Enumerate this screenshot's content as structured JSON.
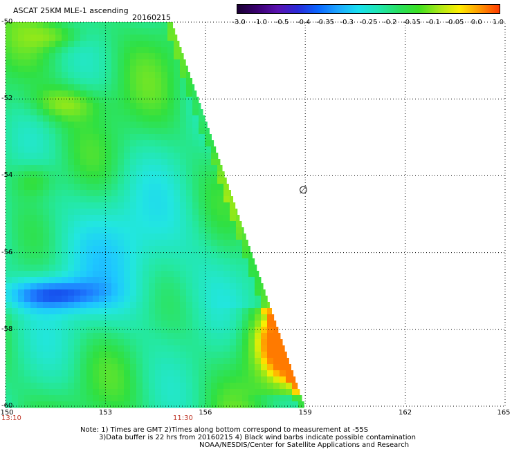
{
  "header": {
    "title": "ASCAT 25KM MLE-1 ascending",
    "date": "20160215"
  },
  "colorbar": {
    "labels": [
      "-3.0",
      "-1.0",
      "-0.5",
      "-0.4",
      "-0.35",
      "-0.3",
      "-0.25",
      "-0.2",
      "-0.15",
      "-0.1",
      "-0.05",
      "0.0",
      "1.0"
    ],
    "colors": [
      "#1a0033",
      "#3a0070",
      "#5a12b0",
      "#2a2ad8",
      "#0a66ff",
      "#1ea7ff",
      "#19e0f0",
      "#20e6b0",
      "#28e060",
      "#3de020",
      "#a8e818",
      "#ffee00",
      "#ff9900",
      "#ff3a00"
    ]
  },
  "map": {
    "lat_labels": [
      "-50",
      "-52",
      "-54",
      "-56",
      "-58",
      "-60"
    ],
    "lon_labels": [
      "150",
      "153",
      "156",
      "159",
      "162",
      "165"
    ],
    "time_labels": [
      "13:10",
      "11:30"
    ],
    "mark_symbol": "∅"
  },
  "notes": {
    "line1": "Note: 1) Times are GMT 2)Times along bottom correspond to measurement at -55S",
    "line2": "3)Data buffer is 22 hrs from 20160215 4) Black wind barbs indicate possible contamination",
    "line3": "NOAA/NESDIS/Center for Satellite Applications and Research"
  }
}
